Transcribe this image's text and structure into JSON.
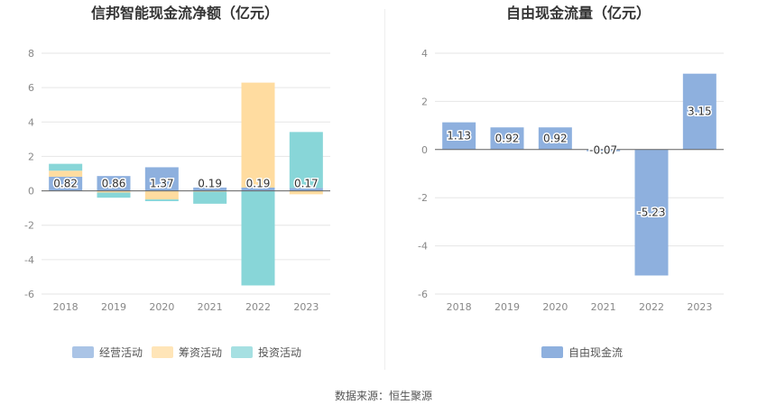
{
  "chart_data": [
    {
      "type": "bar",
      "stacked": true,
      "title": "信邦智能现金流净额（亿元）",
      "categories": [
        "2018",
        "2019",
        "2020",
        "2021",
        "2022",
        "2023"
      ],
      "series": [
        {
          "name": "经营活动",
          "color": "#8eb0de",
          "values": [
            0.82,
            0.86,
            1.37,
            0.19,
            0.19,
            0.17
          ]
        },
        {
          "name": "筹资活动",
          "color": "#ffdca0",
          "values": [
            0.35,
            -0.1,
            -0.5,
            -0.05,
            6.1,
            -0.2
          ]
        },
        {
          "name": "投资活动",
          "color": "#88d6d8",
          "values": [
            0.4,
            -0.3,
            -0.1,
            -0.7,
            -5.5,
            3.25
          ]
        }
      ],
      "data_labels": [
        "0.82",
        "0.86",
        "1.37",
        "0.19",
        "0.19",
        "0.17"
      ],
      "ylim": [
        -6,
        8
      ],
      "yticks": [
        -6,
        -4,
        -2,
        0,
        2,
        4,
        6,
        8
      ],
      "grid": true,
      "legend": "bottom"
    },
    {
      "type": "bar",
      "title": "自由现金流量（亿元）",
      "categories": [
        "2018",
        "2019",
        "2020",
        "2021",
        "2022",
        "2023"
      ],
      "series": [
        {
          "name": "自由现金流",
          "color": "#8eb0de",
          "values": [
            1.13,
            0.92,
            0.92,
            -0.07,
            -5.23,
            3.15
          ]
        }
      ],
      "data_labels": [
        "1.13",
        "0.92",
        "0.92",
        "-0.07",
        "-5.23",
        "3.15"
      ],
      "ylim": [
        -6,
        4
      ],
      "yticks": [
        -6,
        -4,
        -2,
        0,
        2,
        4
      ],
      "grid": true,
      "legend": "bottom"
    }
  ],
  "source": "数据来源：恒生聚源"
}
